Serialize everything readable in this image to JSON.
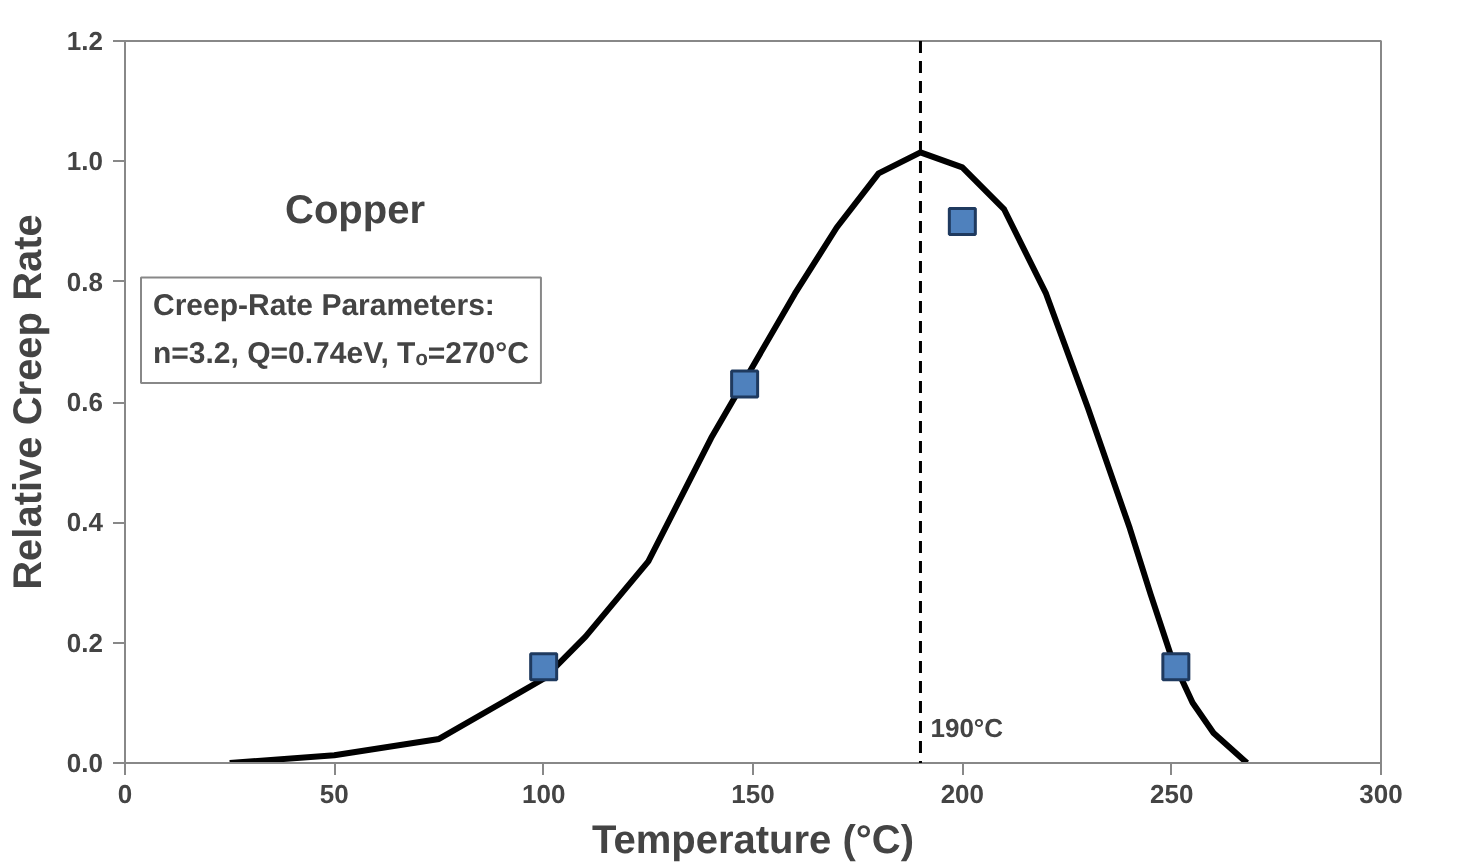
{
  "chart_data": {
    "type": "line",
    "title": "Copper",
    "xlabel": "Temperature (°C)",
    "ylabel": "Relative Creep Rate",
    "annotations": [
      "Creep-Rate Parameters:\nn=3.2, Q=0.74eV, Tₒ=270°C"
    ],
    "series": [
      {
        "color": "#000000",
        "line_style": "solid",
        "marker": "none",
        "x": [
          25,
          50,
          75,
          100,
          110,
          125,
          140,
          150,
          160,
          170,
          180,
          190,
          200,
          210,
          220,
          230,
          240,
          245,
          250,
          255,
          260,
          268
        ],
        "values": [
          0.0,
          0.013,
          0.04,
          0.14,
          0.21,
          0.335,
          0.54,
          0.66,
          0.78,
          0.89,
          0.98,
          1.015,
          0.99,
          0.92,
          0.78,
          0.59,
          0.39,
          0.28,
          0.175,
          0.1,
          0.05,
          0.0
        ]
      },
      {
        "type": "scatter",
        "color": "#4f81bd",
        "marker": "square",
        "x": [
          100,
          148,
          200,
          251
        ],
        "values": [
          0.16,
          0.63,
          0.9,
          0.16
        ]
      }
    ],
    "ref_lines": [
      {
        "axis": "x",
        "value": 190,
        "label": "190°C",
        "line_style": "dashed",
        "color": "#000000"
      }
    ],
    "xlim": [
      0,
      300
    ],
    "xticks": [
      0,
      50,
      100,
      150,
      200,
      250,
      300
    ],
    "ylim": [
      0,
      1.2
    ],
    "yticks": [
      {
        "value": 0,
        "label": "0.0"
      },
      {
        "value": 0.2,
        "label": "0.2"
      },
      {
        "value": 0.4,
        "label": "0.4"
      },
      {
        "value": 0.6,
        "label": "0.6"
      },
      {
        "value": 0.8,
        "label": "0.8"
      },
      {
        "value": 1.0,
        "label": "1.0"
      },
      {
        "value": 1.2,
        "label": "1.2"
      }
    ],
    "grid": false
  }
}
